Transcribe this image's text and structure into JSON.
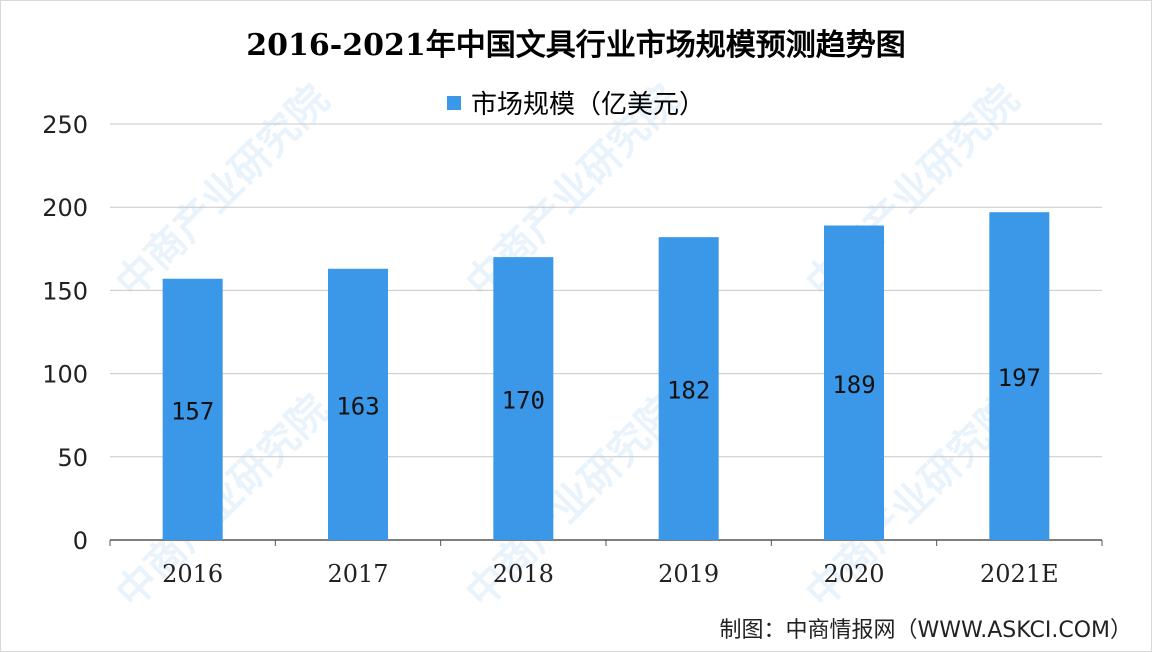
{
  "title": "2016-2021年中国文具行业市场规模预测趋势图",
  "source": "制图：中商情报网（WWW.ASKCI.COM）",
  "watermark": "中商产业研究院",
  "colors": {
    "bar": "#3b98e8",
    "grid": "#c8c8c8",
    "axis": "#555555"
  },
  "chart_data": {
    "type": "bar",
    "title": "2016-2021年中国文具行业市场规模预测趋势图",
    "categories": [
      "2016",
      "2017",
      "2018",
      "2019",
      "2020",
      "2021E"
    ],
    "series": [
      {
        "name": "市场规模（亿美元）",
        "values": [
          157,
          163,
          170,
          182,
          189,
          197
        ]
      }
    ],
    "ylim": [
      0,
      250
    ],
    "yticks": [
      0,
      50,
      100,
      150,
      200,
      250
    ],
    "grid": true,
    "legend": "top-center",
    "data_labels": [
      "157",
      "163",
      "170",
      "182",
      "189",
      "197"
    ]
  }
}
